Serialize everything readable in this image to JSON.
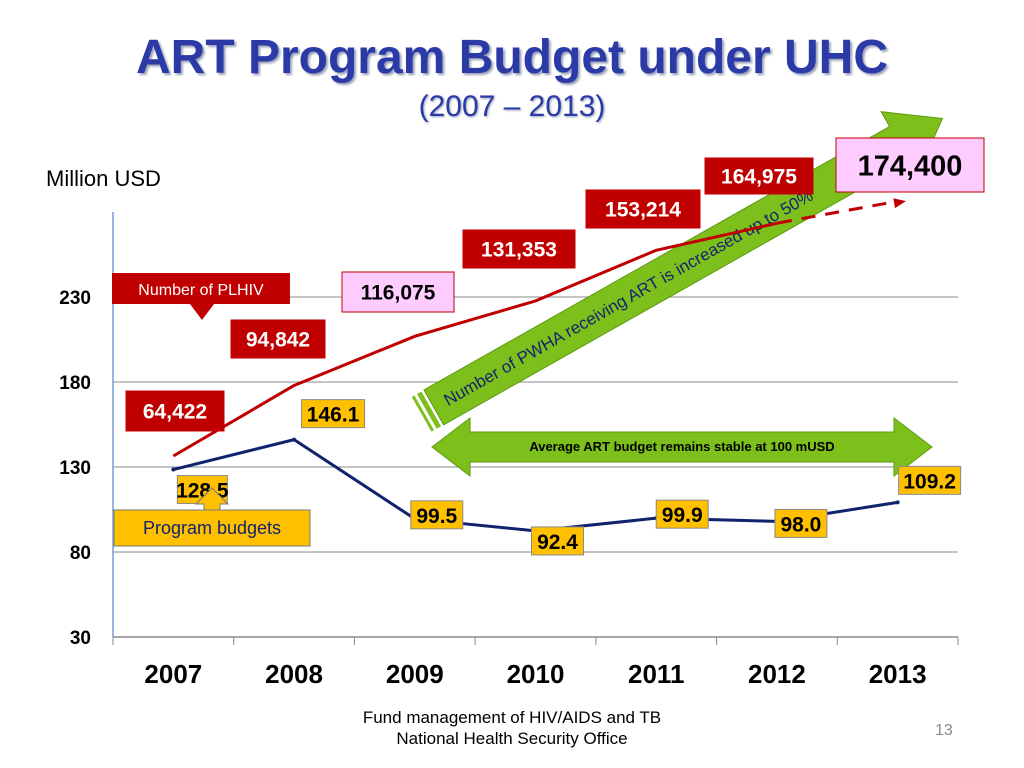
{
  "slide": {
    "title": "ART Program Budget under UHC",
    "subtitle": "(2007 – 2013)",
    "footer_line1": "Fund management of HIV/AIDS and TB",
    "footer_line2": "National Health Security Office",
    "page_number": "13"
  },
  "chart_data": {
    "type": "line",
    "ylabel": "Million USD",
    "categories": [
      "2007",
      "2008",
      "2009",
      "2010",
      "2011",
      "2012",
      "2013"
    ],
    "ylim": [
      30,
      280
    ],
    "yticks": [
      30,
      80,
      130,
      180,
      230
    ],
    "grid": true,
    "series": [
      {
        "name": "Program budgets",
        "color": "#12236e",
        "values": [
          128.5,
          146.1,
          99.5,
          92.4,
          99.9,
          98.0,
          109.2
        ],
        "labels": [
          "128.5",
          "146.1",
          "99.5",
          "92.4",
          "99.9",
          "98.0",
          "109.2"
        ],
        "label_color": "#ffc000"
      },
      {
        "name": "Number of PLHIV",
        "color": "#c00000",
        "values": [
          64422,
          94842,
          116075,
          131353,
          153214,
          164975,
          174400
        ],
        "labels": [
          "64,422",
          "94,842",
          "116,075",
          "131,353",
          "153,214",
          "164,975",
          "174,400"
        ],
        "label_color": "#c00000",
        "projected_last_point": true
      }
    ],
    "annotations": {
      "plhiv_callout": "Number of PLHIV",
      "budget_callout": "Program budgets",
      "stable_budget_note": "Average ART budget remains stable at 100 mUSD",
      "pwha_note": "Number of PWHA receiving ART is increased up to 50%"
    }
  }
}
